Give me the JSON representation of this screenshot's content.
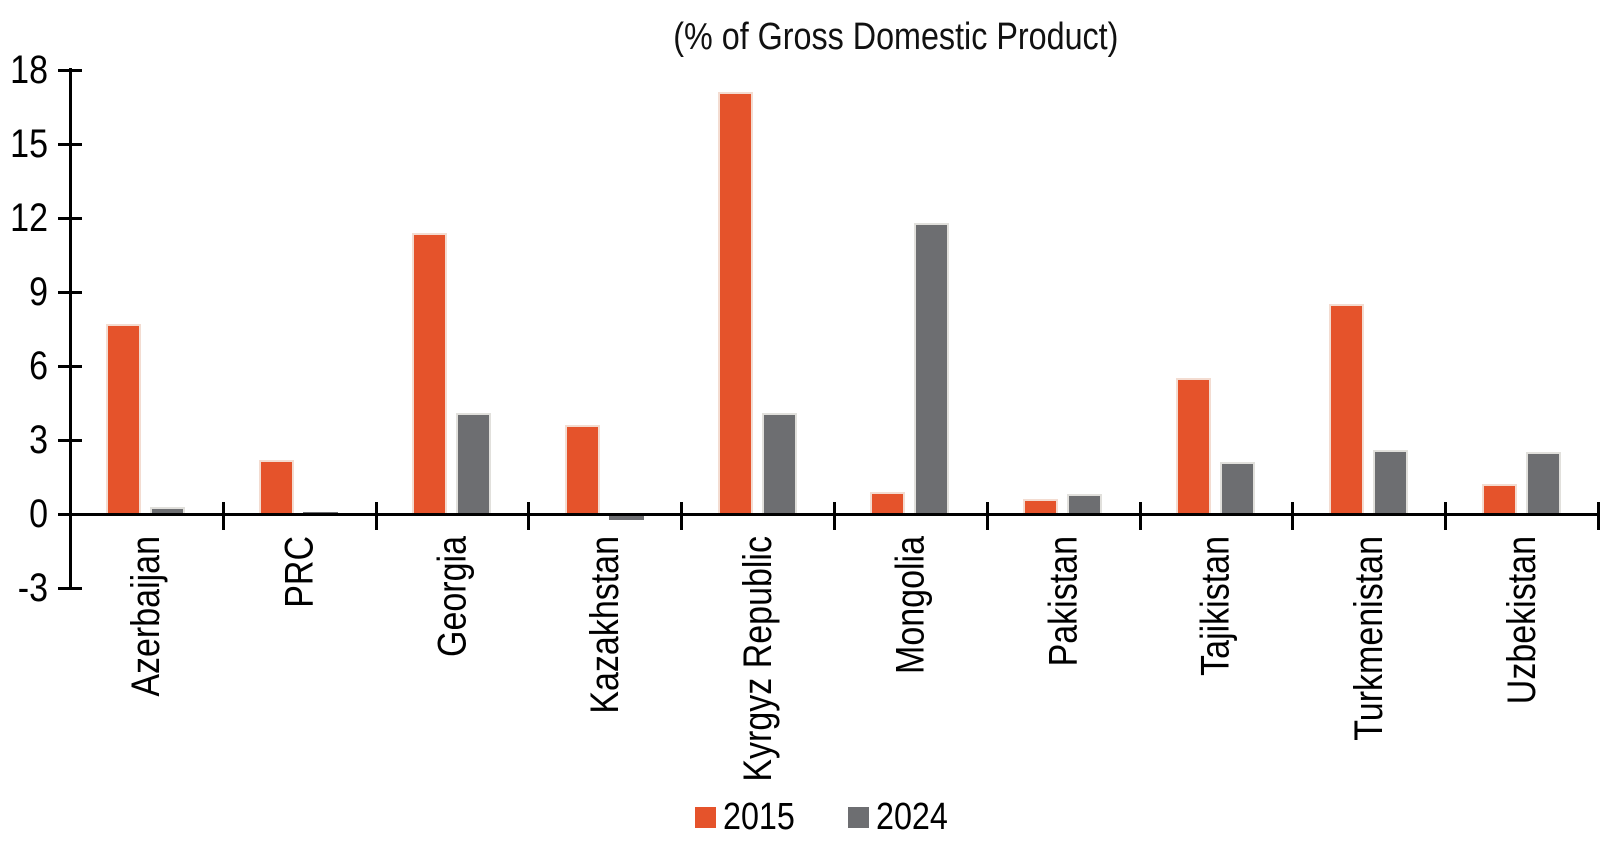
{
  "title": "(% of Gross Domestic Product)",
  "chart_data": {
    "type": "bar",
    "title": "(% of Gross Domestic Product)",
    "categories": [
      "Azerbaijan",
      "PRC",
      "Georgia",
      "Kazakhstan",
      "Kyrgyz Republic",
      "Mongolia",
      "Pakistan",
      "Tajikistan",
      "Turkmenistan",
      "Uzbekistan"
    ],
    "series": [
      {
        "name": "2015",
        "color": "#E5532B",
        "values": [
          7.7,
          2.2,
          11.4,
          3.6,
          17.1,
          0.9,
          0.6,
          5.5,
          8.5,
          1.2
        ]
      },
      {
        "name": "2024",
        "color": "#6D6E71",
        "values": [
          0.3,
          0.1,
          4.1,
          -0.2,
          4.1,
          11.8,
          0.8,
          2.1,
          2.6,
          2.5
        ]
      }
    ],
    "xlabel": "",
    "ylabel": "",
    "ylim": [
      -3,
      18
    ],
    "yticks": [
      18,
      15,
      12,
      9,
      6,
      3,
      0,
      -3
    ],
    "grid": false,
    "legend_position": "bottom",
    "axis_color": "#000000",
    "background_color": "#FFFFFF"
  },
  "legend": {
    "items": [
      {
        "label": "2015",
        "color": "#E5532B"
      },
      {
        "label": "2024",
        "color": "#6D6E71"
      }
    ]
  }
}
